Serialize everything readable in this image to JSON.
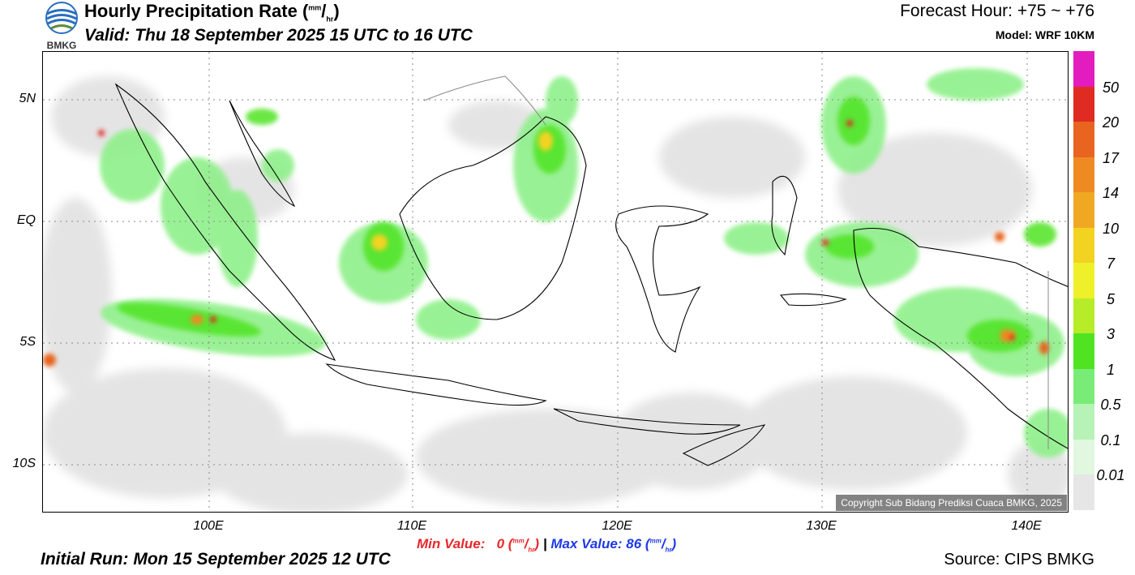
{
  "logo_text": "BMKG",
  "header": {
    "title": "Hourly Precipitation Rate (",
    "unit_num": "mm",
    "unit_den": "hr",
    "title_close": ")",
    "valid": "Valid: Thu 18 September 2025 15 UTC to 16 UTC",
    "forecast_hour": "Forecast Hour: +75 ~ +76",
    "model": "Model: WRF 10KM"
  },
  "map": {
    "lat_labels": [
      "5N",
      "EQ",
      "5S",
      "10S"
    ],
    "lon_labels": [
      "100E",
      "110E",
      "120E",
      "130E",
      "140E"
    ],
    "copyright": "Copyright Sub Bidang Prediksi Cuaca BMKG, 2025"
  },
  "colorbar": {
    "labels": [
      "50",
      "20",
      "17",
      "14",
      "10",
      "7",
      "5",
      "3",
      "1",
      "0.5",
      "0.1",
      "0.01"
    ],
    "colors": [
      "#e21cbe",
      "#e02b22",
      "#e8641f",
      "#ef8a22",
      "#f0a823",
      "#f2d321",
      "#eef12a",
      "#b6ec28",
      "#4fe322",
      "#79ec77",
      "#b7f2b7",
      "#e1f7e0",
      "#e6e6e6"
    ]
  },
  "footer": {
    "min_label": "Min Value:",
    "min_value": "0",
    "separator": "|",
    "max_label": "Max Value:",
    "max_value": "86",
    "unit_num": "mm",
    "unit_den": "hr",
    "initial_run": "Initial Run: Mon 15 September 2025 12 UTC",
    "source": "Source: CIPS BMKG"
  }
}
